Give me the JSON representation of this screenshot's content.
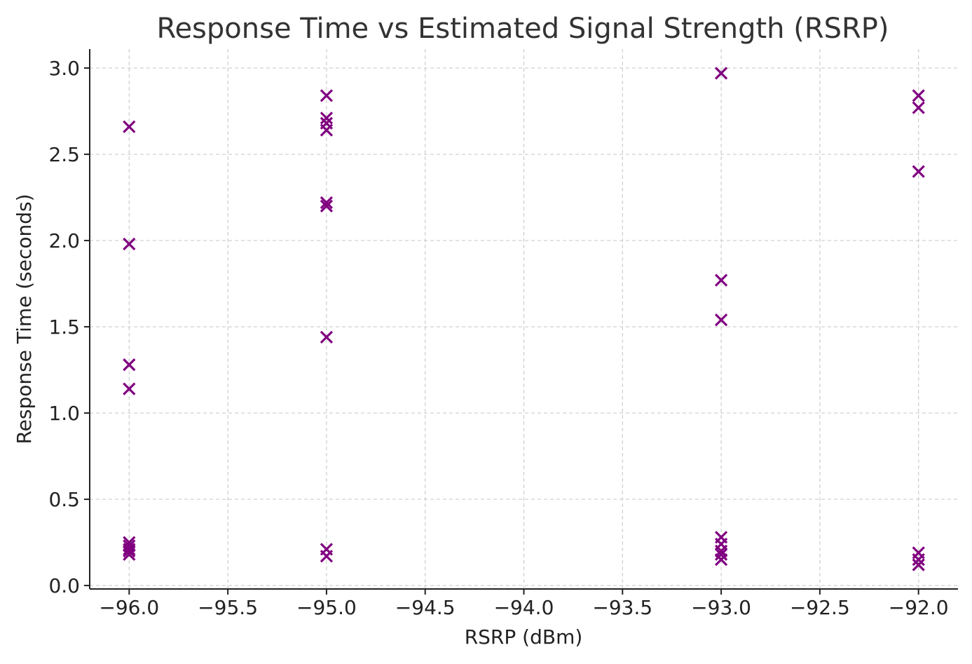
{
  "chart_data": {
    "type": "scatter",
    "title": "Response Time vs Estimated Signal Strength (RSRP)",
    "xlabel": "RSRP (dBm)",
    "ylabel": "Response Time (seconds)",
    "xlim": [
      -96.2,
      -91.8
    ],
    "ylim": [
      -0.02,
      3.11
    ],
    "x_ticks": [
      -96.0,
      -95.5,
      -95.0,
      -94.5,
      -94.0,
      -93.5,
      -93.0,
      -92.5,
      -92.0
    ],
    "x_tick_labels": [
      "−96.0",
      "−95.5",
      "−95.0",
      "−94.5",
      "−94.0",
      "−93.5",
      "−93.0",
      "−92.5",
      "−92.0"
    ],
    "y_ticks": [
      0.0,
      0.5,
      1.0,
      1.5,
      2.0,
      2.5,
      3.0
    ],
    "y_tick_labels": [
      "0.0",
      "0.5",
      "1.0",
      "1.5",
      "2.0",
      "2.5",
      "3.0"
    ],
    "grid": true,
    "marker": "x",
    "color": "#800080",
    "points": [
      {
        "x": -96,
        "y": 2.66
      },
      {
        "x": -96,
        "y": 1.98
      },
      {
        "x": -96,
        "y": 1.28
      },
      {
        "x": -96,
        "y": 1.14
      },
      {
        "x": -96,
        "y": 0.25
      },
      {
        "x": -96,
        "y": 0.23
      },
      {
        "x": -96,
        "y": 0.21
      },
      {
        "x": -96,
        "y": 0.2
      },
      {
        "x": -96,
        "y": 0.18
      },
      {
        "x": -95,
        "y": 2.84
      },
      {
        "x": -95,
        "y": 2.71
      },
      {
        "x": -95,
        "y": 2.68
      },
      {
        "x": -95,
        "y": 2.64
      },
      {
        "x": -95,
        "y": 2.22
      },
      {
        "x": -95,
        "y": 2.2
      },
      {
        "x": -95,
        "y": 1.44
      },
      {
        "x": -95,
        "y": 0.21
      },
      {
        "x": -95,
        "y": 0.17
      },
      {
        "x": -93,
        "y": 2.97
      },
      {
        "x": -93,
        "y": 1.77
      },
      {
        "x": -93,
        "y": 1.54
      },
      {
        "x": -93,
        "y": 0.28
      },
      {
        "x": -93,
        "y": 0.24
      },
      {
        "x": -93,
        "y": 0.2
      },
      {
        "x": -93,
        "y": 0.18
      },
      {
        "x": -93,
        "y": 0.15
      },
      {
        "x": -92,
        "y": 2.84
      },
      {
        "x": -92,
        "y": 2.77
      },
      {
        "x": -92,
        "y": 2.4
      },
      {
        "x": -92,
        "y": 0.19
      },
      {
        "x": -92,
        "y": 0.15
      },
      {
        "x": -92,
        "y": 0.12
      }
    ]
  }
}
